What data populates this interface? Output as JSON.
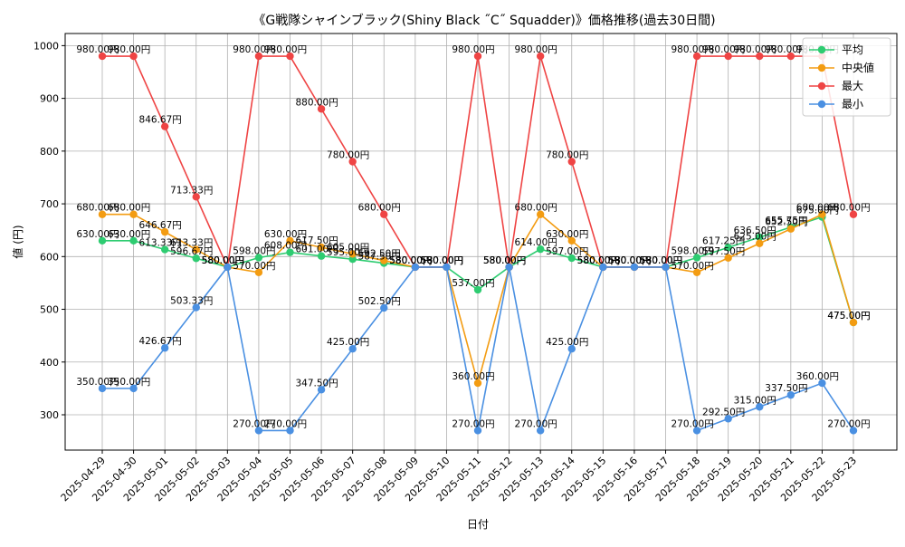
{
  "chart_data": {
    "type": "line",
    "title": "《G戦隊シャインブラック(Shiny Black ˝C˝ Squadder)》価格推移(過去30日間)",
    "xlabel": "日付",
    "ylabel": "値 (円)",
    "ylim": [
      233,
      1023
    ],
    "yticks": [
      300,
      400,
      500,
      600,
      700,
      800,
      900,
      1000
    ],
    "grid": true,
    "legend_position": "top-right",
    "categories": [
      "2025-04-29",
      "2025-04-30",
      "2025-05-01",
      "2025-05-02",
      "2025-05-03",
      "2025-05-04",
      "2025-05-05",
      "2025-05-06",
      "2025-05-07",
      "2025-05-08",
      "2025-05-09",
      "2025-05-10",
      "2025-05-11",
      "2025-05-12",
      "2025-05-13",
      "2025-05-14",
      "2025-05-15",
      "2025-05-16",
      "2025-05-17",
      "2025-05-18",
      "2025-05-19",
      "2025-05-20",
      "2025-05-21",
      "2025-05-22",
      "2025-05-23"
    ],
    "series": [
      {
        "name": "平均",
        "color": "#2ecc71",
        "values": [
          630,
          630,
          613.33,
          596.67,
          580,
          598,
          608,
          601,
          595,
          587.5,
          580,
          580,
          537,
          580,
          614,
          597,
          580,
          580,
          580,
          598,
          617.25,
          636.5,
          655.75,
          675,
          475
        ]
      },
      {
        "name": "中央値",
        "color": "#f39c12",
        "values": [
          680,
          680,
          646.67,
          613.33,
          580,
          570,
          630,
          617.5,
          605,
          592.5,
          580,
          580,
          360,
          580,
          680,
          630,
          580,
          580,
          580,
          570,
          597.5,
          625,
          652.5,
          680,
          475
        ]
      },
      {
        "name": "最大",
        "color": "#ef4444",
        "values": [
          980,
          980,
          846.67,
          713.33,
          580,
          980,
          980,
          880,
          780,
          680,
          580,
          580,
          980,
          580,
          980,
          780,
          580,
          580,
          580,
          980,
          980,
          980,
          980,
          980,
          680
        ]
      },
      {
        "name": "最小",
        "color": "#4a90e2",
        "values": [
          350,
          350,
          426.67,
          503.33,
          580,
          270,
          270,
          347.5,
          425,
          502.5,
          580,
          580,
          270,
          580,
          270,
          425,
          580,
          580,
          580,
          270,
          292.5,
          315,
          337.5,
          360,
          270
        ]
      }
    ],
    "label_suffix": "円"
  }
}
